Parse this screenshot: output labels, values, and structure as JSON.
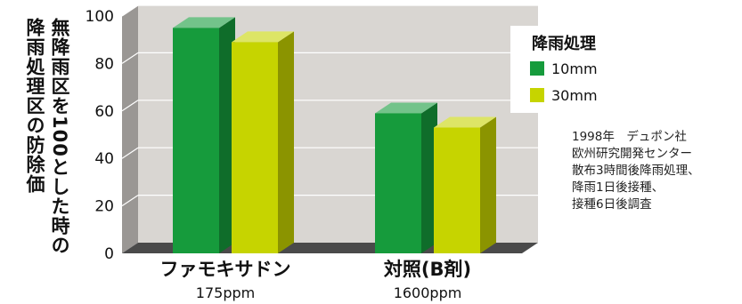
{
  "chart_data": {
    "type": "bar",
    "ylabel_lines": [
      "無降雨区を100とした時の",
      "降雨処理区の防除価"
    ],
    "ylim": [
      0,
      100
    ],
    "yticks": [
      0,
      20,
      40,
      60,
      80,
      100
    ],
    "categories": [
      "ファモキサドン",
      "対照(B剤)"
    ],
    "category_sublabels": [
      "175ppm",
      "1600ppm"
    ],
    "legend": {
      "title": "降雨処理",
      "placement": "top-right"
    },
    "series": [
      {
        "name": "10mm",
        "values": [
          95,
          59
        ],
        "color": "#169b3c"
      },
      {
        "name": "30mm",
        "values": [
          89,
          53
        ],
        "color": "#c6d400"
      }
    ],
    "grid": true,
    "annotation": "1998年　デュポン社\n欧州研究開発センター\n散布3時間後降雨処理、\n降雨1日後接種、\n接種6日後調査"
  }
}
